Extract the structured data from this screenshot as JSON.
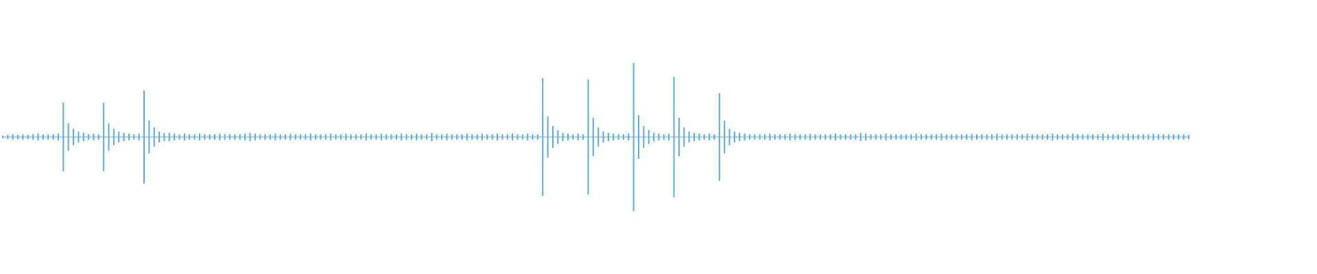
{
  "chart_data": {
    "type": "waveform",
    "color": "#5aaae0",
    "ylim": [
      -1,
      1
    ],
    "values": [
      0.01,
      0.015,
      0.02,
      0.015,
      0.02,
      0.015,
      0.02,
      0.025,
      0.02,
      0.02,
      0.02,
      0.025,
      0.25,
      0.1,
      0.06,
      0.04,
      0.03,
      0.02,
      0.025,
      0.02,
      0.25,
      0.1,
      0.06,
      0.04,
      0.03,
      0.025,
      0.02,
      0.025,
      0.34,
      0.12,
      0.07,
      0.04,
      0.03,
      0.03,
      0.025,
      0.02,
      0.025,
      0.02,
      0.02,
      0.025,
      0.02,
      0.02,
      0.02,
      0.025,
      0.02,
      0.02,
      0.02,
      0.02,
      0.025,
      0.03,
      0.025,
      0.02,
      0.02,
      0.02,
      0.025,
      0.02,
      0.02,
      0.025,
      0.02,
      0.02,
      0.02,
      0.025,
      0.02,
      0.02,
      0.02,
      0.025,
      0.02,
      0.02,
      0.025,
      0.02,
      0.02,
      0.02,
      0.025,
      0.02,
      0.02,
      0.025,
      0.02,
      0.02,
      0.02,
      0.025,
      0.02,
      0.02,
      0.025,
      0.02,
      0.02,
      0.03,
      0.02,
      0.02,
      0.025,
      0.02,
      0.02,
      0.02,
      0.025,
      0.02,
      0.02,
      0.025,
      0.02,
      0.02,
      0.025,
      0.02,
      0.02,
      0.025,
      0.02,
      0.02,
      0.025,
      0.02,
      0.02,
      0.43,
      0.15,
      0.08,
      0.05,
      0.03,
      0.025,
      0.02,
      0.025,
      0.02,
      0.42,
      0.14,
      0.07,
      0.04,
      0.03,
      0.025,
      0.02,
      0.02,
      0.025,
      0.54,
      0.16,
      0.08,
      0.05,
      0.03,
      0.025,
      0.02,
      0.025,
      0.44,
      0.14,
      0.07,
      0.04,
      0.03,
      0.025,
      0.02,
      0.025,
      0.02,
      0.32,
      0.12,
      0.06,
      0.04,
      0.03,
      0.025,
      0.02,
      0.02,
      0.02,
      0.02,
      0.025,
      0.02,
      0.02,
      0.02,
      0.025,
      0.02,
      0.02,
      0.02,
      0.025,
      0.02,
      0.02,
      0.02,
      0.02,
      0.025,
      0.02,
      0.02,
      0.02,
      0.02,
      0.03,
      0.025,
      0.02,
      0.02,
      0.02,
      0.025,
      0.02,
      0.02,
      0.02,
      0.02,
      0.02,
      0.025,
      0.02,
      0.02,
      0.02,
      0.02,
      0.025,
      0.02,
      0.02,
      0.02,
      0.02,
      0.02,
      0.025,
      0.02,
      0.02,
      0.02,
      0.02,
      0.025,
      0.02,
      0.02,
      0.02,
      0.02,
      0.02,
      0.025,
      0.02,
      0.02,
      0.02,
      0.02,
      0.025,
      0.02,
      0.02,
      0.02,
      0.025,
      0.02,
      0.02,
      0.02,
      0.02,
      0.02,
      0.025,
      0.02,
      0.02,
      0.02,
      0.02,
      0.025,
      0.02,
      0.02,
      0.02,
      0.02,
      0.025,
      0.02,
      0.02,
      0.02,
      0.02,
      0.02,
      0.02,
      0.015
    ]
  }
}
